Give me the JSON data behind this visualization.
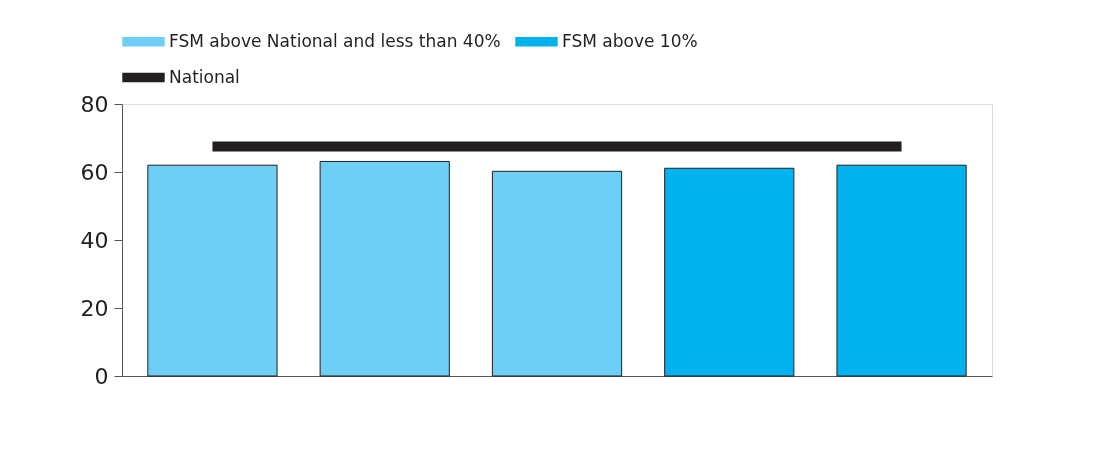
{
  "chart_data": {
    "type": "bar",
    "categories": [
      null,
      null,
      null,
      null,
      null
    ],
    "series": [
      {
        "name": "FSM above National and less than 40%",
        "color": "#6dcff6",
        "values": [
          62.0,
          63.1,
          60.2,
          null,
          null
        ]
      },
      {
        "name": "FSM above 10%",
        "color": "#00b3ef",
        "values": [
          null,
          null,
          null,
          61.1,
          62.0
        ]
      },
      {
        "name": "National",
        "type": "line",
        "color": "#231f20",
        "values": [
          67.5,
          67.5,
          67.5,
          67.5,
          67.5
        ]
      }
    ],
    "ylim": [
      0,
      80
    ],
    "yticks": [
      0,
      20,
      40,
      60,
      80
    ],
    "grid": false,
    "legend": "top left",
    "tick_labels": "y",
    "marker": "none"
  }
}
